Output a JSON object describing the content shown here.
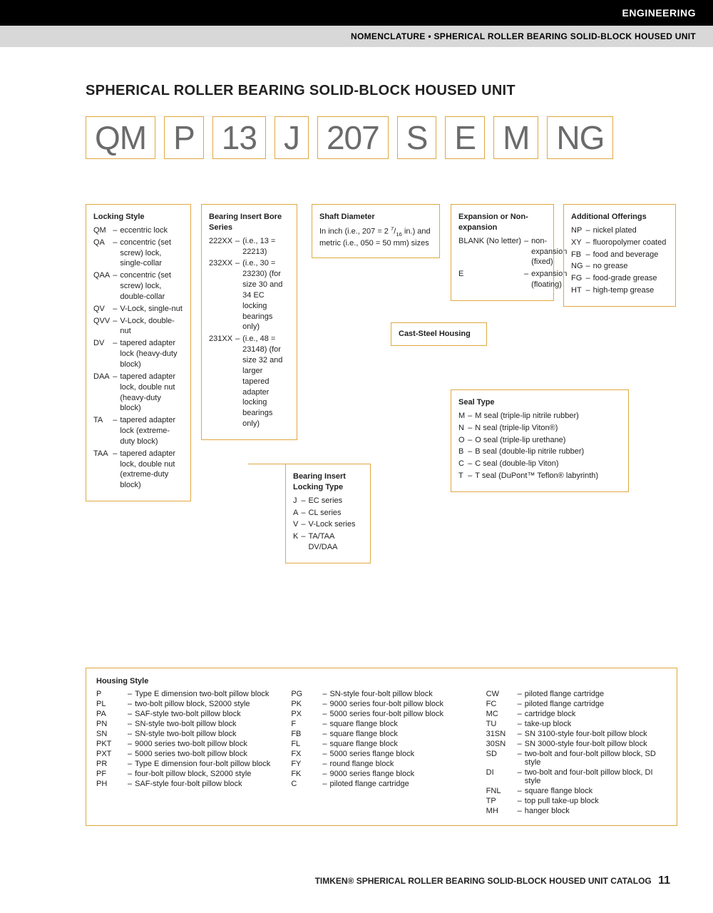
{
  "header": {
    "category": "ENGINEERING",
    "breadcrumb": "NOMENCLATURE • SPHERICAL ROLLER BEARING SOLID-BLOCK HOUSED UNIT"
  },
  "title": "SPHERICAL ROLLER BEARING SOLID-BLOCK HOUSED UNIT",
  "code": [
    "QM",
    "P",
    "13",
    "J",
    "207",
    "S",
    "E",
    "M",
    "NG"
  ],
  "colors": {
    "box_border": "#e0a840",
    "code_text": "#6b6b6b",
    "black": "#000",
    "gray": "#d8d8d8"
  },
  "blocks": {
    "locking_style": {
      "title": "Locking Style",
      "items": [
        [
          "QM",
          "eccentric lock"
        ],
        [
          "QA",
          "concentric (set screw) lock, single-collar"
        ],
        [
          "QAA",
          "concentric (set screw) lock, double-collar"
        ],
        [
          "QV",
          "V-Lock, single-nut"
        ],
        [
          "QVV",
          "V-Lock, double-nut"
        ],
        [
          "DV",
          "tapered adapter lock (heavy-duty block)"
        ],
        [
          "DAA",
          "tapered adapter lock, double nut (heavy-duty block)"
        ],
        [
          "TA",
          "tapered adapter lock (extreme-duty block)"
        ],
        [
          "TAA",
          "tapered adapter lock, double nut (extreme-duty block)"
        ]
      ]
    },
    "bore_series": {
      "title": "Bearing Insert Bore Series",
      "items": [
        [
          "222XX",
          "(i.e., 13 = 22213)"
        ],
        [
          "232XX",
          "(i.e., 30 = 23230) (for size 30 and 34 EC locking bearings only)"
        ],
        [
          "231XX",
          "(i.e., 48 = 23148) (for size 32 and larger tapered adapter locking bearings only)"
        ]
      ]
    },
    "shaft": {
      "title": "Shaft Diameter",
      "text": "In inch (i.e., 207 = 2 7/16 in.) and metric (i.e., 050 = 50 mm) sizes"
    },
    "expansion": {
      "title": "Expansion or Non-expansion",
      "items": [
        [
          "BLANK (No letter)",
          "non-expansion (fixed)"
        ],
        [
          "E",
          "expansion (floating)"
        ]
      ]
    },
    "additional": {
      "title": "Additional Offerings",
      "items": [
        [
          "NP",
          "nickel plated"
        ],
        [
          "XY",
          "fluoropolymer coated"
        ],
        [
          "FB",
          "food and beverage"
        ],
        [
          "NG",
          "no grease"
        ],
        [
          "FG",
          "food-grade grease"
        ],
        [
          "HT",
          "high-temp grease"
        ]
      ]
    },
    "cast": {
      "title": "Cast-Steel Housing"
    },
    "seal": {
      "title": "Seal Type",
      "items": [
        [
          "M",
          "M seal (triple-lip nitrile rubber)"
        ],
        [
          "N",
          "N seal (triple-lip Viton®)"
        ],
        [
          "O",
          "O seal (triple-lip urethane)"
        ],
        [
          "B",
          "B seal (double-lip nitrile rubber)"
        ],
        [
          "C",
          "C seal (double-lip Viton)"
        ],
        [
          "T",
          "T seal (DuPont™ Teflon® labyrinth)"
        ]
      ]
    },
    "locking_type": {
      "title": "Bearing Insert Locking Type",
      "items": [
        [
          "J",
          "EC series"
        ],
        [
          "A",
          "CL series"
        ],
        [
          "V",
          "V-Lock series"
        ],
        [
          "K",
          "TA/TAA DV/DAA"
        ]
      ]
    },
    "housing": {
      "title": "Housing Style",
      "col1": [
        [
          "P",
          "Type E dimension two-bolt pillow block"
        ],
        [
          "PL",
          "two-bolt pillow block, S2000 style"
        ],
        [
          "PA",
          "SAF-style two-bolt pillow block"
        ],
        [
          "PN",
          "SN-style two-bolt pillow block"
        ],
        [
          "SN",
          "SN-style two-bolt pillow block"
        ],
        [
          "PKT",
          "9000 series two-bolt pillow block"
        ],
        [
          "PXT",
          "5000 series two-bolt pillow block"
        ],
        [
          "PR",
          "Type E dimension four-bolt pillow block"
        ],
        [
          "PF",
          "four-bolt pillow block, S2000 style"
        ],
        [
          "PH",
          "SAF-style four-bolt pillow block"
        ]
      ],
      "col2": [
        [
          "PG",
          "SN-style four-bolt pillow block"
        ],
        [
          "PK",
          "9000 series four-bolt pillow block"
        ],
        [
          "PX",
          "5000 series four-bolt pillow block"
        ],
        [
          "F",
          "square flange block"
        ],
        [
          "FB",
          "square flange block"
        ],
        [
          "FL",
          "square flange block"
        ],
        [
          "FX",
          "5000 series flange block"
        ],
        [
          "FY",
          "round flange block"
        ],
        [
          "FK",
          "9000 series flange block"
        ],
        [
          "C",
          "piloted flange cartridge"
        ]
      ],
      "col3": [
        [
          "CW",
          "piloted flange cartridge"
        ],
        [
          "FC",
          "piloted flange cartridge"
        ],
        [
          "MC",
          "cartridge block"
        ],
        [
          "TU",
          "take-up block"
        ],
        [
          "31SN",
          "SN 3100-style four-bolt pillow block"
        ],
        [
          "30SN",
          "SN 3000-style four-bolt pillow block"
        ],
        [
          "SD",
          "two-bolt and four-bolt pillow block, SD style"
        ],
        [
          "DI",
          "two-bolt and four-bolt pillow block, DI style"
        ],
        [
          "FNL",
          "square flange block"
        ],
        [
          "TP",
          "top pull take-up block"
        ],
        [
          "MH",
          "hanger block"
        ]
      ]
    }
  },
  "footer": {
    "text": "TIMKEN® SPHERICAL ROLLER BEARING SOLID-BLOCK HOUSED UNIT CATALOG",
    "page": "11"
  }
}
